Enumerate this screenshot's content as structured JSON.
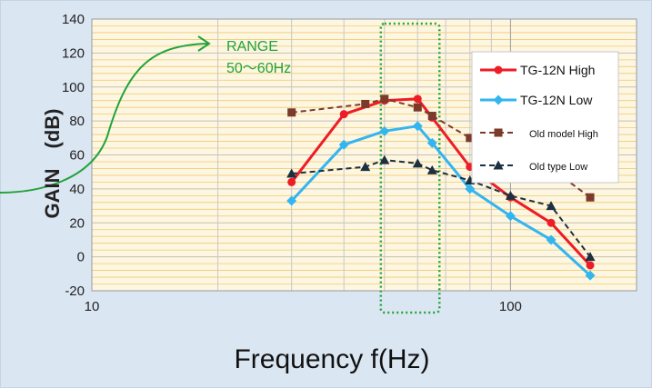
{
  "chart_data": {
    "type": "line",
    "title": "",
    "xlabel": "Frequency f(Hz)",
    "ylabel": "GAIN　(dB)",
    "x_scale": "log",
    "xlim": [
      10,
      200
    ],
    "ylim": [
      -20,
      140
    ],
    "x_ticks": [
      10,
      100
    ],
    "x_tick_labels": [
      "10",
      "100"
    ],
    "y_ticks": [
      -20,
      0,
      20,
      40,
      60,
      80,
      100,
      120,
      140
    ],
    "y_tick_labels": [
      "-20",
      "0",
      "20",
      "40",
      "60",
      "80",
      "100",
      "120",
      "140"
    ],
    "grid": true,
    "legend_position": "top-right",
    "series": [
      {
        "name": "TG-12N High",
        "color": "#ee1c25",
        "line": "solid",
        "marker": "circle",
        "x": [
          30,
          40,
          50,
          60,
          65,
          80,
          100,
          125,
          155
        ],
        "y": [
          44,
          84,
          92,
          93,
          82,
          53,
          35,
          20,
          -5
        ]
      },
      {
        "name": "TG-12N Low",
        "color": "#33b5f0",
        "line": "solid",
        "marker": "diamond",
        "x": [
          30,
          40,
          50,
          60,
          65,
          80,
          100,
          125,
          155
        ],
        "y": [
          33,
          66,
          74,
          77,
          67,
          40,
          24,
          10,
          -11
        ]
      },
      {
        "name": "Old model High",
        "color": "#7b3a2a",
        "line": "dashed",
        "marker": "square",
        "x": [
          30,
          45,
          50,
          60,
          65,
          80,
          100,
          125,
          155
        ],
        "y": [
          85,
          90,
          93,
          88,
          83,
          70,
          60,
          52,
          35
        ]
      },
      {
        "name": "Old type Low",
        "color": "#1d3040",
        "line": "dashed",
        "marker": "triangle",
        "x": [
          30,
          45,
          50,
          60,
          65,
          80,
          100,
          125,
          155
        ],
        "y": [
          49,
          53,
          57,
          55,
          51,
          45,
          36,
          30,
          0
        ]
      }
    ],
    "annotations": {
      "range_line1": "RANGE",
      "range_line2": "50～60Hz",
      "range_x": [
        50,
        65
      ]
    }
  }
}
